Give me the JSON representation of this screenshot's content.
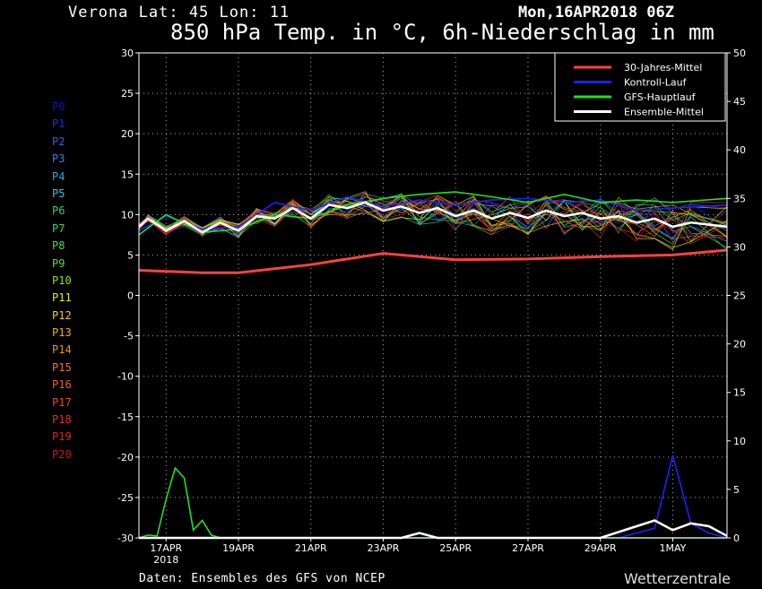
{
  "header": {
    "station": "Verona   Lat: 45 Lon: 11",
    "run": "Mon,16APR2018 06Z",
    "title": "850 hPa Temp. in °C, 6h-Niederschlag in mm"
  },
  "footer": {
    "source": "Daten: Ensembles des GFS von NCEP",
    "brand": "Wetterzentrale"
  },
  "members": [
    {
      "label": "P0",
      "color": "#1010d0"
    },
    {
      "label": "P1",
      "color": "#1a2ee8"
    },
    {
      "label": "P2",
      "color": "#2a60f0"
    },
    {
      "label": "P3",
      "color": "#3080f0"
    },
    {
      "label": "P4",
      "color": "#30a0f0"
    },
    {
      "label": "P5",
      "color": "#30c8e0"
    },
    {
      "label": "P6",
      "color": "#30d080"
    },
    {
      "label": "P7",
      "color": "#30d850"
    },
    {
      "label": "P8",
      "color": "#40e040"
    },
    {
      "label": "P9",
      "color": "#60e020"
    },
    {
      "label": "P10",
      "color": "#90e010"
    },
    {
      "label": "P11",
      "color": "#e8e820"
    },
    {
      "label": "P12",
      "color": "#f0d020"
    },
    {
      "label": "P13",
      "color": "#f0b020"
    },
    {
      "label": "P14",
      "color": "#f09020"
    },
    {
      "label": "P15",
      "color": "#f07820"
    },
    {
      "label": "P16",
      "color": "#f06020"
    },
    {
      "label": "P17",
      "color": "#f04820"
    },
    {
      "label": "P18",
      "color": "#e83020"
    },
    {
      "label": "P19",
      "color": "#e02020"
    },
    {
      "label": "P20",
      "color": "#c81818"
    }
  ],
  "chart_data": {
    "type": "line",
    "x_ticks": [
      {
        "date": "2018-04-17",
        "label": "17APR",
        "sublabel": "2018"
      },
      {
        "date": "2018-04-19",
        "label": "19APR"
      },
      {
        "date": "2018-04-21",
        "label": "21APR"
      },
      {
        "date": "2018-04-23",
        "label": "23APR"
      },
      {
        "date": "2018-04-25",
        "label": "25APR"
      },
      {
        "date": "2018-04-27",
        "label": "27APR"
      },
      {
        "date": "2018-04-29",
        "label": "29APR"
      },
      {
        "date": "2018-05-01",
        "label": "1MAY"
      }
    ],
    "xlim": [
      "2018-04-16T06:00",
      "2018-05-02T12:00"
    ],
    "y_left": {
      "label": "850 hPa Temp. (°C)",
      "lim": [
        -30,
        30
      ],
      "ticks": [
        30,
        25,
        20,
        15,
        10,
        5,
        0,
        -5,
        -10,
        -15,
        -20,
        -25,
        -30
      ]
    },
    "y_right": {
      "label": "6h-Niederschlag (mm)",
      "lim": [
        0,
        50
      ],
      "ticks": [
        50,
        45,
        40,
        35,
        30,
        25,
        20,
        15,
        10,
        5,
        0
      ]
    },
    "grid": true,
    "legend": {
      "position": "top-right",
      "entries": [
        {
          "name": "30-Jahres-Mittel",
          "color": "#ff4040"
        },
        {
          "name": "Kontroll-Lauf",
          "color": "#2020ff"
        },
        {
          "name": "GFS-Hauptlauf",
          "color": "#20e020"
        },
        {
          "name": "Ensemble-Mittel",
          "color": "#ffffff"
        }
      ]
    },
    "series": [
      {
        "name": "30-Jahres-Mittel",
        "axis": "left",
        "color": "#ff4040",
        "x": [
          "2018-04-16T06:00",
          "2018-04-18T00:00",
          "2018-04-19T00:00",
          "2018-04-21T00:00",
          "2018-04-23T00:00",
          "2018-04-25T00:00",
          "2018-04-27T00:00",
          "2018-04-29T00:00",
          "2018-05-01T00:00",
          "2018-05-02T12:00"
        ],
        "y": [
          3.1,
          2.8,
          2.8,
          3.8,
          5.2,
          4.4,
          4.5,
          4.8,
          5.0,
          5.6
        ]
      },
      {
        "name": "Kontroll-Lauf",
        "axis": "left",
        "color": "#2020ff",
        "x": [
          "2018-04-16T06:00",
          "2018-04-17T00:00",
          "2018-04-18T00:00",
          "2018-04-19T00:00",
          "2018-04-20T00:00",
          "2018-04-21T00:00",
          "2018-04-22T00:00",
          "2018-04-23T00:00",
          "2018-04-24T00:00",
          "2018-04-25T00:00",
          "2018-04-26T00:00",
          "2018-04-27T00:00",
          "2018-04-28T00:00",
          "2018-04-29T00:00",
          "2018-04-30T00:00",
          "2018-05-01T00:00",
          "2018-05-02T12:00"
        ],
        "y": [
          8.0,
          9.8,
          8.2,
          8.5,
          11.5,
          10.5,
          12.2,
          11.0,
          11.8,
          11.2,
          11.8,
          12.0,
          11.5,
          11.8,
          10.5,
          10.8,
          11.2
        ]
      },
      {
        "name": "GFS-Hauptlauf",
        "axis": "left",
        "color": "#20e020",
        "x": [
          "2018-04-16T06:00",
          "2018-04-17T00:00",
          "2018-04-18T00:00",
          "2018-04-19T00:00",
          "2018-04-20T00:00",
          "2018-04-21T00:00",
          "2018-04-22T00:00",
          "2018-04-23T00:00",
          "2018-04-24T00:00",
          "2018-04-25T00:00",
          "2018-04-26T00:00",
          "2018-04-27T00:00",
          "2018-04-28T00:00",
          "2018-04-29T00:00",
          "2018-04-30T00:00",
          "2018-05-01T00:00",
          "2018-05-02T12:00"
        ],
        "y": [
          7.5,
          10.0,
          7.8,
          8.2,
          10.0,
          9.5,
          11.2,
          12.0,
          12.5,
          12.8,
          12.2,
          11.5,
          12.5,
          11.5,
          11.8,
          11.5,
          12.0
        ]
      },
      {
        "name": "Ensemble-Mittel",
        "axis": "left",
        "color": "#ffffff",
        "x": [
          "2018-04-16T06:00",
          "2018-04-16T12:00",
          "2018-04-17T00:00",
          "2018-04-17T12:00",
          "2018-04-18T00:00",
          "2018-04-18T12:00",
          "2018-04-19T00:00",
          "2018-04-19T12:00",
          "2018-04-20T00:00",
          "2018-04-20T12:00",
          "2018-04-21T00:00",
          "2018-04-21T12:00",
          "2018-04-22T00:00",
          "2018-04-22T12:00",
          "2018-04-23T00:00",
          "2018-04-23T12:00",
          "2018-04-24T00:00",
          "2018-04-24T12:00",
          "2018-04-25T00:00",
          "2018-04-25T12:00",
          "2018-04-26T00:00",
          "2018-04-26T12:00",
          "2018-04-27T00:00",
          "2018-04-27T12:00",
          "2018-04-28T00:00",
          "2018-04-28T12:00",
          "2018-04-29T00:00",
          "2018-04-29T12:00",
          "2018-04-30T00:00",
          "2018-04-30T12:00",
          "2018-05-01T00:00",
          "2018-05-01T12:00",
          "2018-05-02T12:00"
        ],
        "y": [
          8.5,
          9.5,
          8.0,
          9.2,
          7.8,
          9.0,
          8.0,
          9.8,
          9.5,
          10.8,
          9.5,
          11.2,
          10.8,
          11.5,
          10.5,
          11.0,
          10.2,
          10.8,
          9.8,
          10.5,
          9.5,
          10.2,
          9.6,
          10.5,
          9.8,
          10.2,
          9.5,
          9.8,
          9.0,
          9.5,
          8.5,
          9.0,
          8.5
        ]
      },
      {
        "name": "Kontroll-Lauf",
        "axis": "right",
        "color": "#2020ff",
        "x": [
          "2018-04-16T06:00",
          "2018-04-29T12:00",
          "2018-04-30T12:00",
          "2018-05-01T00:00",
          "2018-05-01T12:00",
          "2018-05-02T00:00",
          "2018-05-02T12:00"
        ],
        "y": [
          0,
          0,
          1.0,
          8.5,
          1.5,
          0.5,
          0
        ]
      },
      {
        "name": "GFS-Hauptlauf",
        "axis": "right",
        "color": "#20e020",
        "x": [
          "2018-04-16T06:00",
          "2018-04-16T12:00",
          "2018-04-16T18:00",
          "2018-04-17T00:00",
          "2018-04-17T06:00",
          "2018-04-17T12:00",
          "2018-04-17T18:00",
          "2018-04-18T00:00",
          "2018-04-18T06:00",
          "2018-04-18T12:00",
          "2018-04-30T12:00",
          "2018-05-02T12:00"
        ],
        "y": [
          0,
          0.3,
          0.2,
          4.0,
          7.2,
          6.2,
          0.8,
          1.8,
          0.3,
          0,
          0,
          0
        ]
      },
      {
        "name": "Ensemble-Mittel",
        "axis": "right",
        "color": "#ffffff",
        "x": [
          "2018-04-16T06:00",
          "2018-04-23T12:00",
          "2018-04-24T00:00",
          "2018-04-24T12:00",
          "2018-04-29T00:00",
          "2018-04-30T00:00",
          "2018-04-30T12:00",
          "2018-05-01T00:00",
          "2018-05-01T12:00",
          "2018-05-02T00:00",
          "2018-05-02T12:00"
        ],
        "y": [
          0,
          0,
          0.5,
          0,
          0,
          1.2,
          1.8,
          0.8,
          1.5,
          1.2,
          0.2
        ]
      }
    ]
  }
}
